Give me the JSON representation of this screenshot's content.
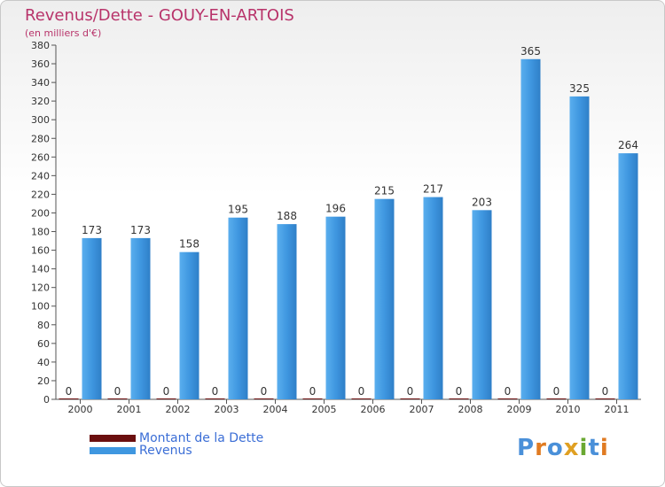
{
  "header": {
    "title": "Revenus/Dette - GOUY-EN-ARTOIS",
    "unit_label": "(en milliers d'€)"
  },
  "colors": {
    "dette": "#6b0f0f",
    "revenus": "#3f97e0",
    "title": "#b8336a",
    "legend_text": "#3b6ed6"
  },
  "legend": {
    "dette_label": "Montant de la Dette",
    "revenus_label": "Revenus"
  },
  "logo": {
    "text": "Proxiti",
    "letters": [
      "P",
      "r",
      "o",
      "x",
      "i",
      "t",
      "i"
    ],
    "letter_colors": [
      "#4a90d9",
      "#e07b22",
      "#4a90d9",
      "#e0a022",
      "#6aa832",
      "#4a90d9",
      "#e07b22"
    ]
  },
  "chart_data": {
    "type": "bar",
    "categories": [
      "2000",
      "2001",
      "2002",
      "2003",
      "2004",
      "2005",
      "2006",
      "2007",
      "2008",
      "2009",
      "2010",
      "2011"
    ],
    "series": [
      {
        "name": "Montant de la Dette",
        "values": [
          0,
          0,
          0,
          0,
          0,
          0,
          0,
          0,
          0,
          0,
          0,
          0
        ]
      },
      {
        "name": "Revenus",
        "values": [
          173,
          173,
          158,
          195,
          188,
          196,
          215,
          217,
          203,
          365,
          325,
          264
        ]
      }
    ],
    "yticks": [
      0,
      20,
      40,
      60,
      80,
      100,
      120,
      140,
      160,
      180,
      200,
      220,
      240,
      260,
      280,
      300,
      320,
      340,
      360,
      380
    ],
    "ylim": [
      0,
      380
    ],
    "grid": false,
    "legend_position": "bottom-left"
  }
}
